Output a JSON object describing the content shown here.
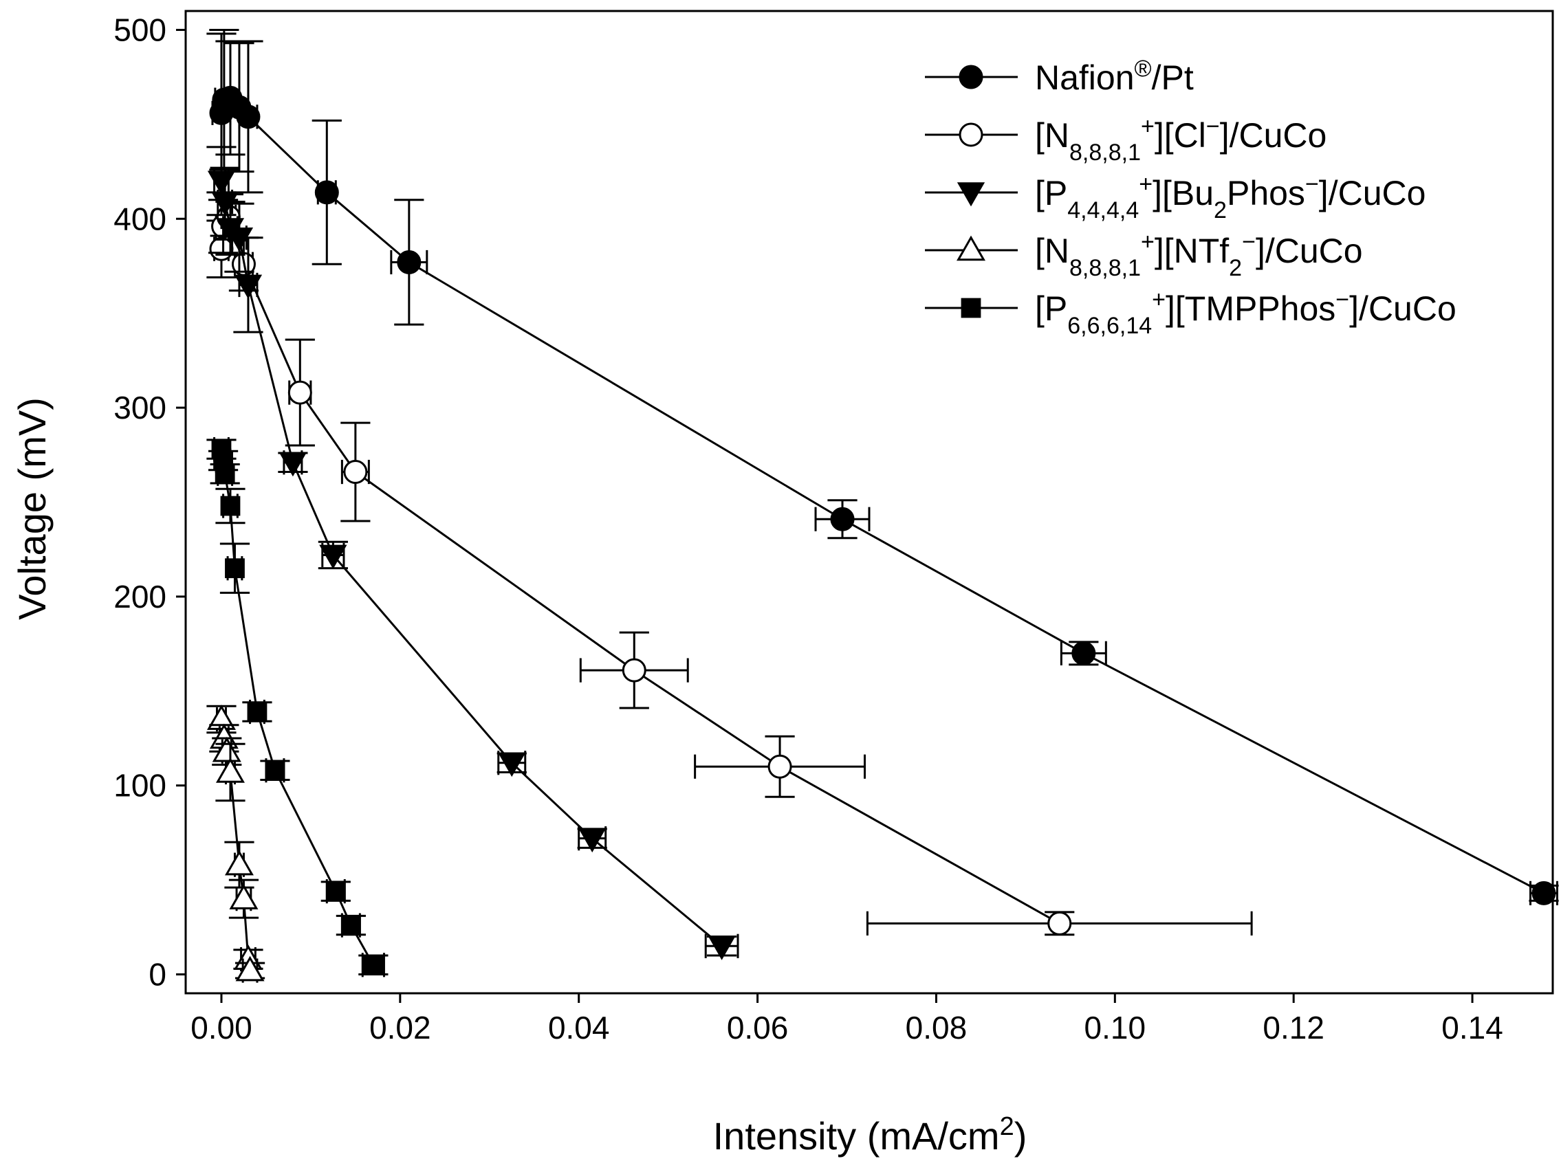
{
  "chart_data": {
    "type": "line",
    "title": "",
    "xlabel": "Intensity (mA/cm",
    "xlabel_sup": "2",
    "xlabel_close": ")",
    "ylabel": "Voltage (mV)",
    "xlim": [
      -0.004,
      0.149
    ],
    "ylim": [
      -10,
      510
    ],
    "xticks": [
      0.0,
      0.02,
      0.04,
      0.06,
      0.08,
      0.1,
      0.12,
      0.14
    ],
    "xtick_labels": [
      "0.00",
      "0.02",
      "0.04",
      "0.06",
      "0.08",
      "0.10",
      "0.12",
      "0.14"
    ],
    "yticks": [
      0,
      100,
      200,
      300,
      400,
      500
    ],
    "ytick_labels": [
      "0",
      "100",
      "200",
      "300",
      "400",
      "500"
    ],
    "legend_position": "top-right",
    "series": [
      {
        "name": "Nafion®/Pt",
        "marker": "circle-filled",
        "legend": [
          {
            "t": "Nafion"
          },
          {
            "t": "®",
            "s": "sup"
          },
          {
            "t": "/Pt"
          }
        ],
        "points": [
          {
            "x": 0.0,
            "y": 456,
            "xerr": 0.001,
            "yerr": 42
          },
          {
            "x": 0.0003,
            "y": 463,
            "xerr": 0.001,
            "yerr": 37
          },
          {
            "x": 0.001,
            "y": 464,
            "xerr": 0.001,
            "yerr": 30
          },
          {
            "x": 0.002,
            "y": 459,
            "xerr": 0.001,
            "yerr": 34
          },
          {
            "x": 0.003,
            "y": 454,
            "xerr": 0.001,
            "yerr": 40
          },
          {
            "x": 0.0118,
            "y": 414,
            "xerr": 0.001,
            "yerr": 38
          },
          {
            "x": 0.021,
            "y": 377,
            "xerr": 0.002,
            "yerr": 33
          },
          {
            "x": 0.0695,
            "y": 241,
            "xerr": 0.003,
            "yerr": 10
          },
          {
            "x": 0.0965,
            "y": 170,
            "xerr": 0.0025,
            "yerr": 6
          },
          {
            "x": 0.148,
            "y": 43,
            "xerr": 0.0015,
            "yerr": 4
          }
        ]
      },
      {
        "name": "[N8,8,8,1+][Cl−]/CuCo",
        "marker": "circle-open",
        "legend": [
          {
            "t": "[N"
          },
          {
            "t": "8,8,8,1",
            "s": "sub"
          },
          {
            "t": "+",
            "s": "sup"
          },
          {
            "t": "][Cl"
          },
          {
            "t": "−",
            "s": "sup"
          },
          {
            "t": "]/CuCo"
          }
        ],
        "points": [
          {
            "x": 0.0,
            "y": 384,
            "xerr": 0.0008,
            "yerr": 15
          },
          {
            "x": 0.0002,
            "y": 396,
            "xerr": 0.0008,
            "yerr": 14
          },
          {
            "x": 0.0008,
            "y": 401,
            "xerr": 0.0008,
            "yerr": 12
          },
          {
            "x": 0.0025,
            "y": 376,
            "xerr": 0.001,
            "yerr": 14
          },
          {
            "x": 0.0088,
            "y": 308,
            "xerr": 0.0012,
            "yerr": 28
          },
          {
            "x": 0.015,
            "y": 266,
            "xerr": 0.0015,
            "yerr": 26
          },
          {
            "x": 0.0462,
            "y": 161,
            "xerr": 0.006,
            "yerr": 20
          },
          {
            "x": 0.0625,
            "y": 110,
            "xerr": 0.0095,
            "yerr": 16
          },
          {
            "x": 0.0938,
            "y": 27,
            "xerr": 0.0215,
            "yerr": 6
          }
        ]
      },
      {
        "name": "[P4,4,4,4+][Bu2Phos−]/CuCo",
        "marker": "triangle-down-filled",
        "legend": [
          {
            "t": "[P"
          },
          {
            "t": "4,4,4,4",
            "s": "sub"
          },
          {
            "t": "+",
            "s": "sup"
          },
          {
            "t": "][Bu"
          },
          {
            "t": "2",
            "s": "sub"
          },
          {
            "t": "Phos"
          },
          {
            "t": "−",
            "s": "sup"
          },
          {
            "t": "]/CuCo"
          }
        ],
        "points": [
          {
            "x": 0.0,
            "y": 420,
            "xerr": 0.0008,
            "yerr": 18
          },
          {
            "x": 0.0004,
            "y": 409,
            "xerr": 0.0008,
            "yerr": 18
          },
          {
            "x": 0.001,
            "y": 395,
            "xerr": 0.0008,
            "yerr": 14
          },
          {
            "x": 0.002,
            "y": 390,
            "xerr": 0.0008,
            "yerr": 18
          },
          {
            "x": 0.003,
            "y": 365,
            "xerr": 0.001,
            "yerr": 25
          },
          {
            "x": 0.008,
            "y": 271,
            "xerr": 0.001,
            "yerr": 5
          },
          {
            "x": 0.0125,
            "y": 222,
            "xerr": 0.0012,
            "yerr": 7
          },
          {
            "x": 0.0325,
            "y": 112,
            "xerr": 0.0015,
            "yerr": 5
          },
          {
            "x": 0.0415,
            "y": 72,
            "xerr": 0.0015,
            "yerr": 5
          },
          {
            "x": 0.056,
            "y": 15,
            "xerr": 0.0018,
            "yerr": 5
          }
        ]
      },
      {
        "name": "[N8,8,8,1+][NTf2−]/CuCo",
        "marker": "triangle-up-open",
        "legend": [
          {
            "t": "[N"
          },
          {
            "t": "8,8,8,1",
            "s": "sub"
          },
          {
            "t": "+",
            "s": "sup"
          },
          {
            "t": "][NTf"
          },
          {
            "t": "2",
            "s": "sub"
          },
          {
            "t": "−",
            "s": "sup"
          },
          {
            "t": "]/CuCo"
          }
        ],
        "points": [
          {
            "x": 0.0,
            "y": 135,
            "xerr": 0.0005,
            "yerr": 7
          },
          {
            "x": 0.0003,
            "y": 125,
            "xerr": 0.0005,
            "yerr": 7
          },
          {
            "x": 0.0006,
            "y": 118,
            "xerr": 0.0005,
            "yerr": 7
          },
          {
            "x": 0.001,
            "y": 107,
            "xerr": 0.0005,
            "yerr": 15
          },
          {
            "x": 0.002,
            "y": 58,
            "xerr": 0.0005,
            "yerr": 12
          },
          {
            "x": 0.0025,
            "y": 40,
            "xerr": 0.0008,
            "yerr": 10
          },
          {
            "x": 0.003,
            "y": 8,
            "xerr": 0.0008,
            "yerr": 5
          },
          {
            "x": 0.0032,
            "y": 2,
            "xerr": 0.0008,
            "yerr": 4
          }
        ]
      },
      {
        "name": "[P6,6,6,14+][TMPPhos−]/CuCo",
        "marker": "square-filled",
        "legend": [
          {
            "t": "[P"
          },
          {
            "t": "6,6,6,14",
            "s": "sub"
          },
          {
            "t": "+",
            "s": "sup"
          },
          {
            "t": "][TMPPhos"
          },
          {
            "t": "−",
            "s": "sup"
          },
          {
            "t": "]/CuCo"
          }
        ],
        "points": [
          {
            "x": 0.0,
            "y": 278,
            "xerr": 0.0008,
            "yerr": 5
          },
          {
            "x": 0.0002,
            "y": 272,
            "xerr": 0.0008,
            "yerr": 5
          },
          {
            "x": 0.0004,
            "y": 265,
            "xerr": 0.0008,
            "yerr": 5
          },
          {
            "x": 0.001,
            "y": 248,
            "xerr": 0.0008,
            "yerr": 9
          },
          {
            "x": 0.0015,
            "y": 215,
            "xerr": 0.0008,
            "yerr": 13
          },
          {
            "x": 0.004,
            "y": 139,
            "xerr": 0.0008,
            "yerr": 5
          },
          {
            "x": 0.006,
            "y": 108,
            "xerr": 0.001,
            "yerr": 5
          },
          {
            "x": 0.0128,
            "y": 44,
            "xerr": 0.001,
            "yerr": 5
          },
          {
            "x": 0.0145,
            "y": 26,
            "xerr": 0.001,
            "yerr": 5
          },
          {
            "x": 0.017,
            "y": 5,
            "xerr": 0.0012,
            "yerr": 5
          }
        ]
      }
    ]
  }
}
